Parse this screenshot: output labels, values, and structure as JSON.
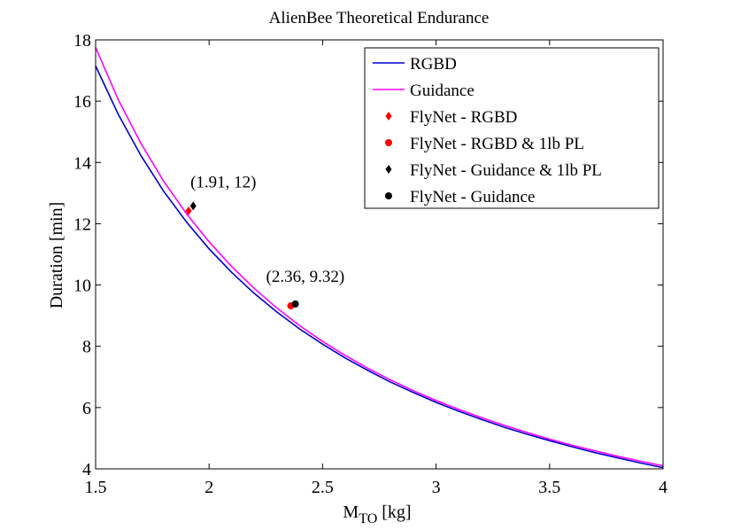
{
  "chart_data": {
    "type": "line",
    "title": "AlienBee Theoretical Endurance",
    "xlabel": "M",
    "xlabel_sub": "TO",
    "xlabel_unit": "[kg]",
    "ylabel": "Duration [min]",
    "xlim": [
      1.5,
      4
    ],
    "ylim": [
      4,
      18
    ],
    "xticks": [
      1.5,
      2,
      2.5,
      3,
      3.5,
      4
    ],
    "xtick_labels": [
      "1.5",
      "2",
      "2.5",
      "3",
      "3.5",
      "4"
    ],
    "yticks": [
      4,
      6,
      8,
      10,
      12,
      14,
      16,
      18
    ],
    "ytick_labels": [
      "4",
      "6",
      "8",
      "10",
      "12",
      "14",
      "16",
      "18"
    ],
    "grid": false,
    "legend_position": "top-right",
    "series": [
      {
        "name": "RGBD",
        "kind": "line",
        "color": "#0000cc",
        "x": [
          1.5,
          1.6,
          1.7,
          1.8,
          1.9,
          2.0,
          2.1,
          2.2,
          2.3,
          2.4,
          2.5,
          2.6,
          2.7,
          2.8,
          2.9,
          3.0,
          3.1,
          3.2,
          3.3,
          3.4,
          3.5,
          3.6,
          3.7,
          3.8,
          3.9,
          4.0
        ],
        "y": [
          17.15,
          15.57,
          14.22,
          13.06,
          12.06,
          11.18,
          10.41,
          9.72,
          9.11,
          8.56,
          8.07,
          7.62,
          7.21,
          6.83,
          6.49,
          6.17,
          5.88,
          5.61,
          5.36,
          5.13,
          4.92,
          4.72,
          4.53,
          4.36,
          4.19,
          4.41
        ]
      },
      {
        "name": "Guidance",
        "kind": "line",
        "color": "#ff00ff",
        "x": [
          1.5,
          1.6,
          1.7,
          1.8,
          1.9,
          2.0,
          2.1,
          2.2,
          2.3,
          2.4,
          2.5,
          2.6,
          2.7,
          2.8,
          2.9,
          3.0,
          3.1,
          3.2,
          3.3,
          3.4,
          3.5,
          3.6,
          3.7,
          3.8,
          3.9,
          4.0
        ],
        "y": [
          17.75,
          16.05,
          14.62,
          13.39,
          12.33,
          11.41,
          10.6,
          9.88,
          9.24,
          8.67,
          8.16,
          7.7,
          7.28,
          6.9,
          6.55,
          6.23,
          5.94,
          5.67,
          5.42,
          5.19,
          4.97,
          4.77,
          4.59,
          4.41,
          4.25,
          4.46
        ]
      },
      {
        "name": "FlyNet - RGBD",
        "kind": "marker",
        "marker": "diamond",
        "color": "#ff0000",
        "x": [
          1.91
        ],
        "y": [
          12.42
        ]
      },
      {
        "name": "FlyNet - RGBD & 1lb PL",
        "kind": "marker",
        "marker": "circle",
        "color": "#ff0000",
        "x": [
          2.36
        ],
        "y": [
          9.32
        ]
      },
      {
        "name": "FlyNet - Guidance & 1lb PL",
        "kind": "marker",
        "marker": "diamond",
        "color": "#000000",
        "x": [
          1.93
        ],
        "y": [
          12.58
        ]
      },
      {
        "name": "FlyNet - Guidance",
        "kind": "marker",
        "marker": "circle",
        "color": "#000000",
        "x": [
          2.38
        ],
        "y": [
          9.38
        ]
      }
    ],
    "annotations": [
      {
        "text": "(1.91, 12)",
        "x": 1.91,
        "y": 12.4
      },
      {
        "text": "(2.36, 9.32)",
        "x": 2.36,
        "y": 9.32
      }
    ]
  }
}
